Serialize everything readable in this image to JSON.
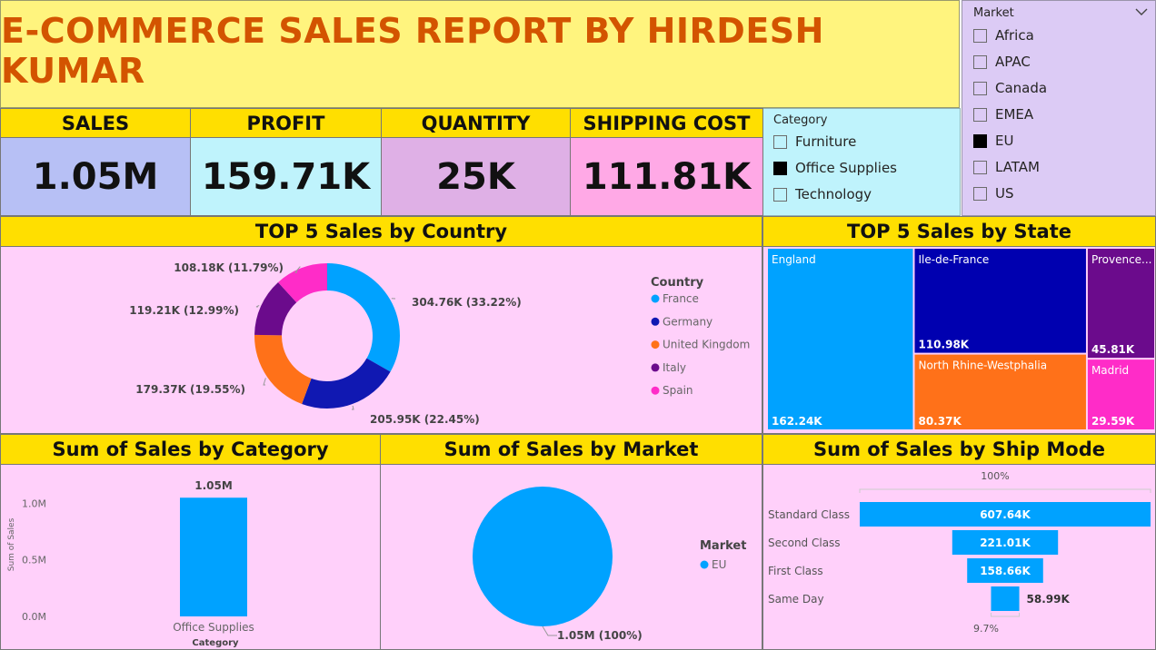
{
  "header": {
    "title": "E-COMMERCE SALES REPORT BY HIRDESH KUMAR"
  },
  "colors": {
    "title_bg": "#FFF47E",
    "title_text": "#D35400",
    "header_bar": "#FFDF00",
    "panel_bg": "#FFD0FA",
    "sales_bg": "#B7C0F5",
    "profit_bg": "#BFF3FC",
    "quantity_bg": "#DFB0E6",
    "shipping_bg": "#FFA9E6",
    "market_slicer_bg": "#DCCBF5",
    "category_slicer_bg": "#BFF3FC"
  },
  "kpis": [
    {
      "label": "SALES",
      "value": "1.05M"
    },
    {
      "label": "PROFIT",
      "value": "159.71K"
    },
    {
      "label": "QUANTITY",
      "value": "25K"
    },
    {
      "label": "SHIPPING COST",
      "value": "111.81K"
    }
  ],
  "category_slicer": {
    "title": "Category",
    "options": [
      {
        "label": "Furniture",
        "checked": false
      },
      {
        "label": "Office Supplies",
        "checked": true
      },
      {
        "label": "Technology",
        "checked": false
      }
    ]
  },
  "market_slicer": {
    "title": "Market",
    "icon": "chevron-down-icon",
    "options": [
      {
        "label": "Africa",
        "checked": false
      },
      {
        "label": "APAC",
        "checked": false
      },
      {
        "label": "Canada",
        "checked": false
      },
      {
        "label": "EMEA",
        "checked": false
      },
      {
        "label": "EU",
        "checked": true
      },
      {
        "label": "LATAM",
        "checked": false
      },
      {
        "label": "US",
        "checked": false
      }
    ]
  },
  "panels": {
    "country": "TOP 5 Sales by Country",
    "state": "TOP 5 Sales by State",
    "category": "Sum of Sales by Category",
    "market": "Sum of Sales by Market",
    "shipmode": "Sum of Sales by Ship Mode"
  },
  "chart_data": [
    {
      "id": "country",
      "type": "pie",
      "variant": "donut",
      "title": "TOP 5 Sales by Country",
      "legend_title": "Country",
      "legend_position": "right",
      "slices": [
        {
          "name": "France",
          "value": 304760,
          "label": "304.76K (33.22%)",
          "color": "#00A2FF"
        },
        {
          "name": "Germany",
          "value": 205950,
          "label": "205.95K (22.45%)",
          "color": "#1018B2"
        },
        {
          "name": "United Kingdom",
          "value": 179370,
          "label": "179.37K (19.55%)",
          "color": "#FF7119"
        },
        {
          "name": "Italy",
          "value": 119210,
          "label": "119.21K (12.99%)",
          "color": "#6B0B8C"
        },
        {
          "name": "Spain",
          "value": 108180,
          "label": "108.18K (11.79%)",
          "color": "#FF2CC8"
        }
      ]
    },
    {
      "id": "state",
      "type": "treemap",
      "title": "TOP 5 Sales by State",
      "items": [
        {
          "name": "England",
          "value": 162240,
          "label": "162.24K",
          "color": "#00A2FF"
        },
        {
          "name": "Ile-de-France",
          "value": 110980,
          "label": "110.98K",
          "color": "#0000B0"
        },
        {
          "name": "North Rhine-Westphalia",
          "value": 80370,
          "label": "80.37K",
          "color": "#FF7119"
        },
        {
          "name": "Provence...",
          "value": 45810,
          "label": "45.81K",
          "color": "#6B0B8C"
        },
        {
          "name": "Madrid",
          "value": 29590,
          "label": "29.59K",
          "color": "#FF2CC8"
        }
      ]
    },
    {
      "id": "category",
      "type": "bar",
      "title": "Sum of Sales by Category",
      "categories": [
        "Office Supplies"
      ],
      "values": [
        1050000
      ],
      "data_labels": [
        "1.05M"
      ],
      "xlabel": "Category",
      "ylabel": "Sum of Sales",
      "yticks": [
        "0.0M",
        "0.5M",
        "1.0M"
      ],
      "ylim": [
        0,
        1100000
      ],
      "color": "#00A2FF"
    },
    {
      "id": "market",
      "type": "pie",
      "title": "Sum of Sales by Market",
      "legend_title": "Market",
      "legend_position": "right",
      "slices": [
        {
          "name": "EU",
          "value": 1050000,
          "label": "1.05M (100%)",
          "color": "#00A2FF"
        }
      ]
    },
    {
      "id": "shipmode",
      "type": "bar",
      "variant": "funnel",
      "title": "Sum of Sales by Ship Mode",
      "categories": [
        "Standard Class",
        "Second Class",
        "First Class",
        "Same Day"
      ],
      "values": [
        607640,
        221010,
        158660,
        58990
      ],
      "data_labels": [
        "607.64K",
        "221.01K",
        "158.66K",
        "58.99K"
      ],
      "top_pct": "100%",
      "bottom_pct": "9.7%",
      "color": "#00A2FF"
    }
  ]
}
